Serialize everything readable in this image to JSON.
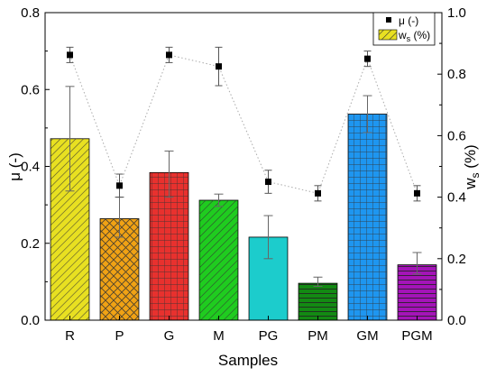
{
  "chart_data": {
    "type": "bar",
    "title": "",
    "xlabel": "Samples",
    "categories": [
      "R",
      "P",
      "G",
      "M",
      "PG",
      "PM",
      "GM",
      "PGM"
    ],
    "y_left": {
      "label": "μ (-)",
      "lim": [
        0,
        0.8
      ],
      "ticks": [
        "0.0",
        "0.2",
        "0.4",
        "0.6",
        "0.8"
      ]
    },
    "y_right": {
      "label_main": "w",
      "label_sub": "s",
      "label_tail": " (%)",
      "lim": [
        0,
        1.0
      ],
      "ticks": [
        "0.0",
        "0.2",
        "0.4",
        "0.6",
        "0.8",
        "1.0"
      ]
    },
    "bar_series": {
      "name_main": "w",
      "name_sub": "s",
      "name_tail": " (%)",
      "axis": "right",
      "values": [
        0.59,
        0.33,
        0.48,
        0.39,
        0.27,
        0.12,
        0.67,
        0.18
      ],
      "err_low": [
        0.42,
        0.27,
        0.4,
        0.37,
        0.2,
        0.11,
        0.61,
        0.15
      ],
      "err_high": [
        0.76,
        0.4,
        0.55,
        0.41,
        0.34,
        0.14,
        0.73,
        0.22
      ],
      "colors": [
        "#e8e021",
        "#f0a214",
        "#e8312e",
        "#1fcc1f",
        "#1ccccc",
        "#138a13",
        "#1e96f0",
        "#a414b8"
      ],
      "patterns": [
        "diag",
        "cross",
        "grid",
        "diag",
        "none",
        "horiz",
        "grid",
        "horiz"
      ]
    },
    "point_series": {
      "name": "μ (-)",
      "axis": "left",
      "values": [
        0.69,
        0.35,
        0.69,
        0.66,
        0.36,
        0.33,
        0.68,
        0.33
      ],
      "err_low": [
        0.67,
        0.32,
        0.67,
        0.61,
        0.33,
        0.31,
        0.66,
        0.31
      ],
      "err_high": [
        0.71,
        0.38,
        0.71,
        0.71,
        0.39,
        0.35,
        0.7,
        0.35
      ],
      "line_style": "dotted"
    },
    "legend_position": "top-right",
    "grid": false
  }
}
